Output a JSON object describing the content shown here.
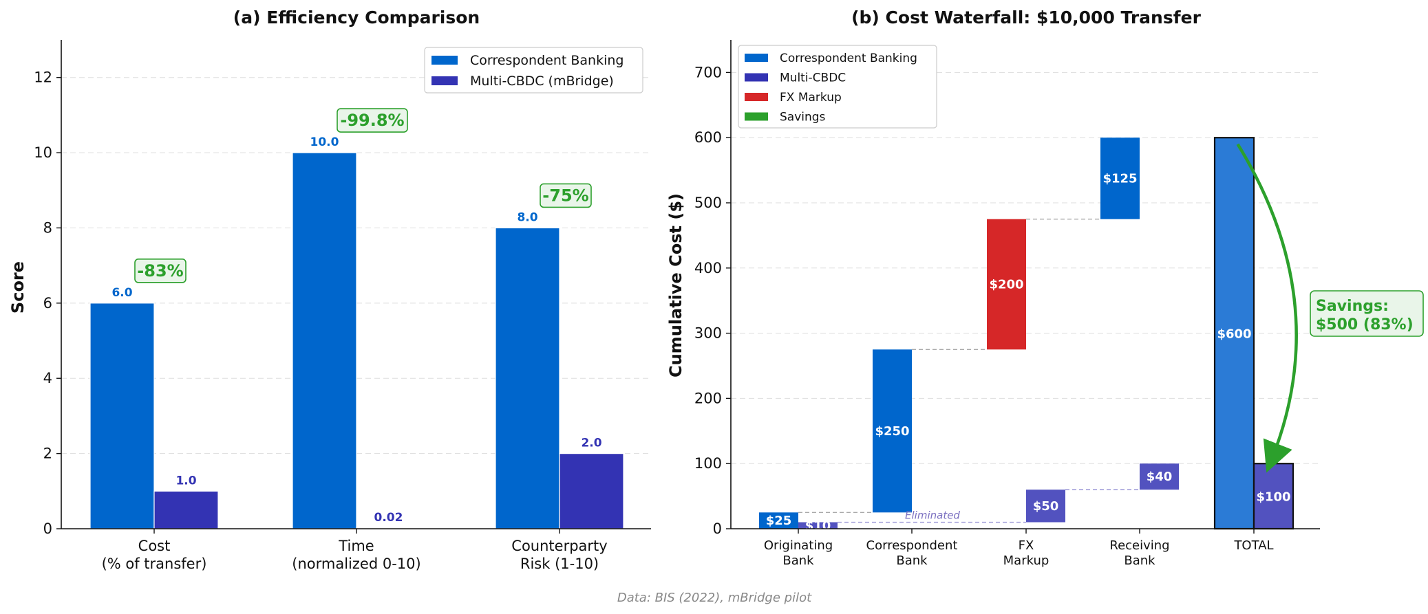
{
  "colors": {
    "correspondent": "#0066cc",
    "cbdc": "#3333b3",
    "cbdc_light": "#5252bf",
    "fx": "#d62728",
    "savings": "#2ca02c",
    "total_corr": "#2b7bd6"
  },
  "footer": "Data: BIS (2022), mBridge pilot",
  "chart_data": [
    {
      "type": "bar",
      "title": "(a) Efficiency Comparison",
      "ylabel": "Score",
      "ylim": [
        0,
        13
      ],
      "yticks": [
        "0",
        "2",
        "4",
        "6",
        "8",
        "10",
        "12"
      ],
      "categories": [
        "Cost\n(% of transfer)",
        "Time\n(normalized 0-10)",
        "Counterparty\nRisk (1-10)"
      ],
      "series": [
        {
          "name": "Correspondent Banking",
          "values": [
            6.0,
            10.0,
            8.0
          ],
          "labels": [
            "6.0",
            "10.0",
            "8.0"
          ]
        },
        {
          "name": "Multi-CBDC (mBridge)",
          "values": [
            1.0,
            0.02,
            2.0
          ],
          "labels": [
            "1.0",
            "0.02",
            "2.0"
          ]
        }
      ],
      "reductions": [
        "-83%",
        "-99.8%",
        "-75%"
      ],
      "legend": "top-right",
      "grid": "y-dashed"
    },
    {
      "type": "waterfall",
      "title": "(b) Cost Waterfall: $10,000 Transfer",
      "ylabel": "Cumulative Cost ($)",
      "ylim": [
        0,
        750
      ],
      "yticks": [
        "0",
        "100",
        "200",
        "300",
        "400",
        "500",
        "600",
        "700"
      ],
      "categories": [
        "Originating\nBank",
        "Correspondent\nBank",
        "FX\nMarkup",
        "Receiving\nBank",
        "TOTAL"
      ],
      "legend_items": [
        "Correspondent Banking",
        "Multi-CBDC",
        "FX Markup",
        "Savings"
      ],
      "legend": "top-left",
      "correspondent_steps": [
        {
          "category": "Originating\nBank",
          "start": 0,
          "value": 25,
          "label": "$25",
          "kind": "corr"
        },
        {
          "category": "Correspondent\nBank",
          "start": 25,
          "value": 250,
          "label": "$250",
          "kind": "corr"
        },
        {
          "category": "FX\nMarkup",
          "start": 275,
          "value": 200,
          "label": "$200",
          "kind": "fx"
        },
        {
          "category": "Receiving\nBank",
          "start": 475,
          "value": 125,
          "label": "$125",
          "kind": "corr"
        }
      ],
      "cbdc_steps": [
        {
          "category": "Originating\nBank",
          "start": 0,
          "value": 10,
          "label": "$10"
        },
        {
          "category": "FX\nMarkup",
          "start": 10,
          "value": 50,
          "label": "$50"
        },
        {
          "category": "Receiving\nBank",
          "start": 60,
          "value": 40,
          "label": "$40"
        }
      ],
      "totals": [
        {
          "series": "Correspondent Banking",
          "value": 600,
          "label": "$600"
        },
        {
          "series": "Multi-CBDC",
          "value": 100,
          "label": "$100"
        }
      ],
      "eliminated_label": "Eliminated",
      "savings_line1": "Savings:",
      "savings_line2": "$500 (83%)",
      "grid": "y-dashed"
    }
  ]
}
